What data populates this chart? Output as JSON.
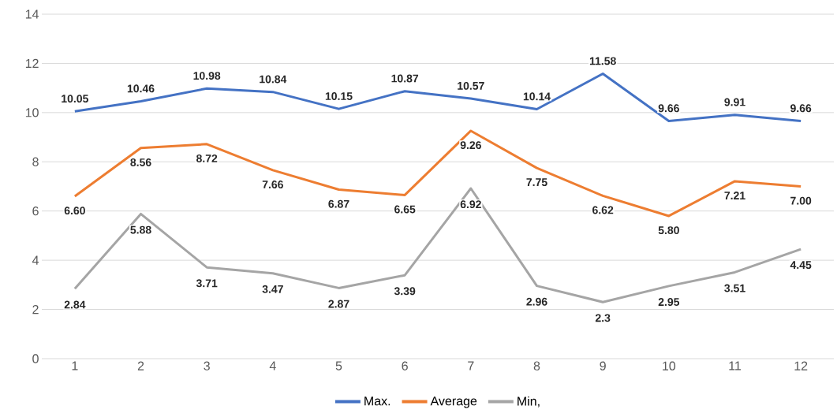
{
  "chart_data": {
    "type": "line",
    "categories": [
      "1",
      "2",
      "3",
      "4",
      "5",
      "6",
      "7",
      "8",
      "9",
      "10",
      "11",
      "12"
    ],
    "series": [
      {
        "name": "Max.",
        "color": "#4472c4",
        "values": [
          10.05,
          10.46,
          10.98,
          10.84,
          10.15,
          10.87,
          10.57,
          10.14,
          11.58,
          9.66,
          9.91,
          9.66
        ],
        "value_labels": [
          "10.05",
          "10.46",
          "10.98",
          "10.84",
          "10.15",
          "10.87",
          "10.57",
          "10.14",
          "11.58",
          "9.66",
          "9.91",
          "9.66"
        ]
      },
      {
        "name": "Average",
        "color": "#ed7d31",
        "values": [
          6.6,
          8.56,
          8.72,
          7.66,
          6.87,
          6.65,
          9.26,
          7.75,
          6.62,
          5.8,
          7.21,
          7.0
        ],
        "value_labels": [
          "6.60",
          "8.56",
          "8.72",
          "7.66",
          "6.87",
          "6.65",
          "9.26",
          "7.75",
          "6.62",
          "5.80",
          "7.21",
          "7.00"
        ]
      },
      {
        "name": "Min,",
        "color": "#a5a5a5",
        "values": [
          2.84,
          5.88,
          3.71,
          3.47,
          2.87,
          3.39,
          6.92,
          2.96,
          2.3,
          2.95,
          3.51,
          4.45
        ],
        "value_labels": [
          "2.84",
          "5.88",
          "3.71",
          "3.47",
          "2.87",
          "3.39",
          "6.92",
          "2.96",
          "2.3",
          "2.95",
          "3.51",
          "4.45"
        ]
      }
    ],
    "ylim": [
      0,
      14
    ],
    "yticks": [
      0,
      2,
      4,
      6,
      8,
      10,
      12,
      14
    ],
    "grid": "y",
    "legend": "bottom",
    "marker": "none",
    "line_style": "solid"
  }
}
